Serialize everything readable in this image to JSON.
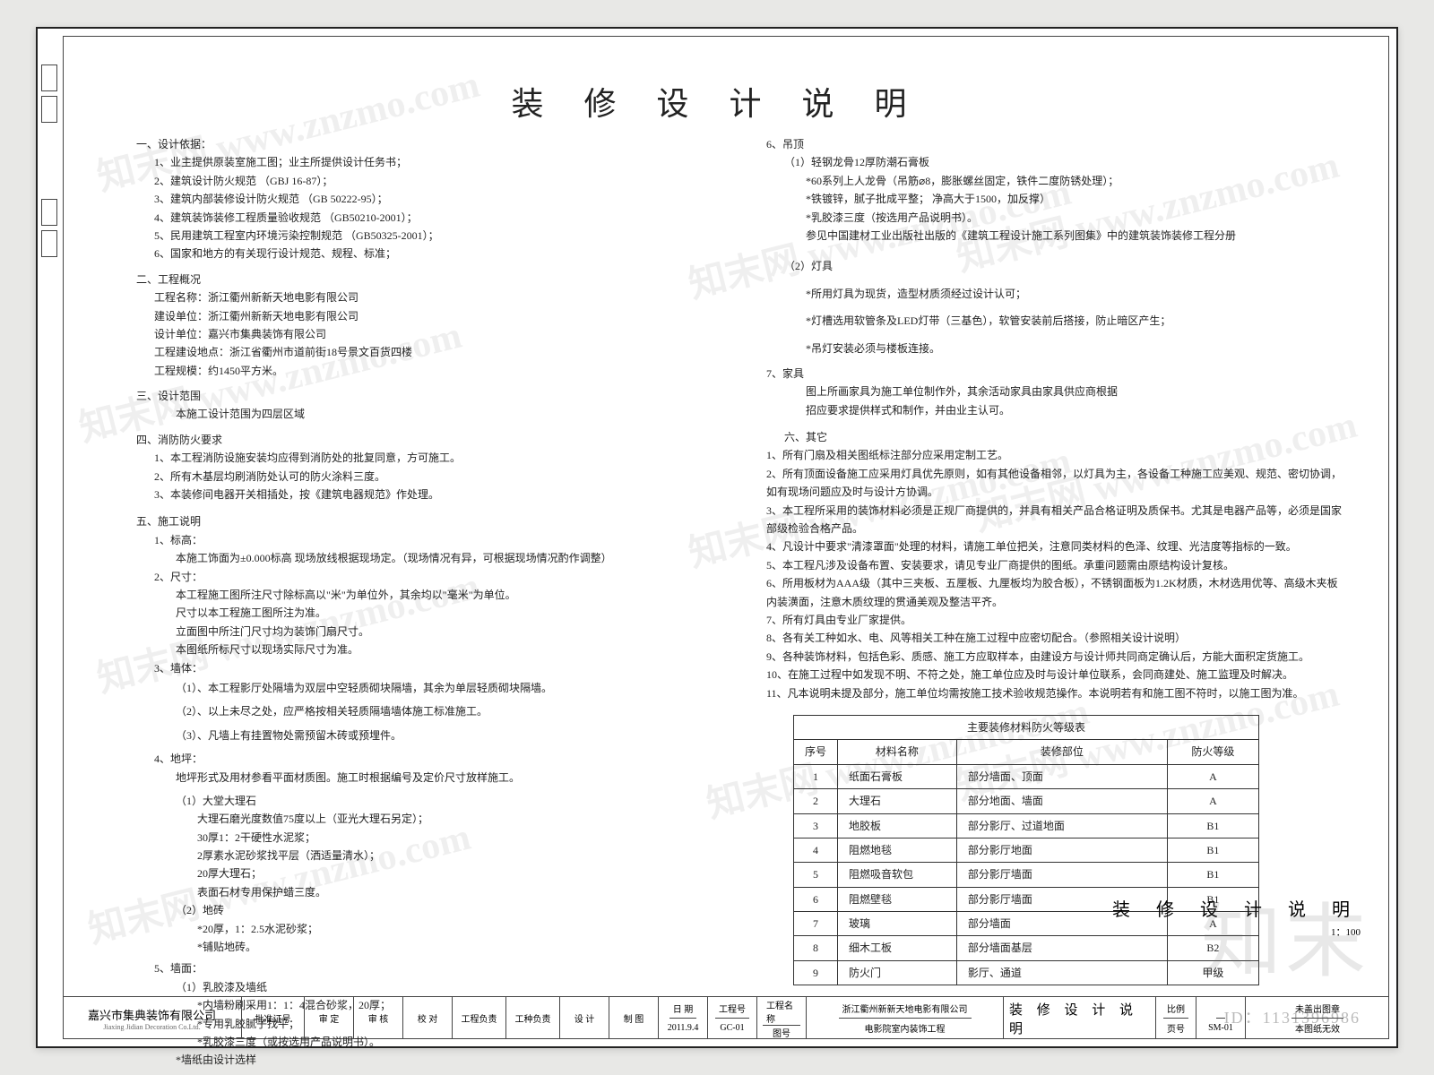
{
  "title": "装 修 设 计 说 明",
  "side_title": "装 修 设 计 说 明",
  "side_scale": "1：100",
  "watermark_text": "知末网 www.znzmo.com",
  "big_watermark": "知末",
  "footer_id": "ID：1131396986",
  "left": {
    "s1_head": "一、设计依据：",
    "s1_1": "1、业主提供原装室施工图；业主所提供设计任务书；",
    "s1_2": "2、建筑设计防火规范 （GBJ 16-87）；",
    "s1_3": "3、建筑内部装修设计防火规范 （GB 50222-95）；",
    "s1_4": "4、建筑装饰装修工程质量验收规范 （GB50210-2001）；",
    "s1_5": "5、民用建筑工程室内环境污染控制规范 （GB50325-2001）；",
    "s1_6": "6、国家和地方的有关现行设计规范、规程、标准；",
    "s2_head": "二、工程概况",
    "s2_1": "工程名称：浙江衢州新新天地电影有限公司",
    "s2_2": "建设单位：浙江衢州新新天地电影有限公司",
    "s2_3": "设计单位：嘉兴市集典装饰有限公司",
    "s2_4": "工程建设地点：浙江省衢州市道前街18号景文百货四楼",
    "s2_5": "工程规模：约1450平方米。",
    "s3_head": "三、设计范围",
    "s3_1": "本施工设计范围为四层区域",
    "s4_head": "四、消防防火要求",
    "s4_1": "1、本工程消防设施安装均应得到消防处的批复同意，方可施工。",
    "s4_2": "2、所有木基层均刷消防处认可的防火涂料三度。",
    "s4_3": "3、本装修间电器开关相插处，按《建筑电器规范》作处理。",
    "s5_head": "五、施工说明",
    "s5_1h": "1、标高：",
    "s5_1": "本施工饰面为±0.000标高 现场放线根据现场定。（现场情况有异，可根据现场情况酌作调整）",
    "s5_2h": "2、尺寸：",
    "s5_2a": "本工程施工图所注尺寸除标高以\"米\"为单位外，其余均以\"毫米\"为单位。",
    "s5_2b": "尺寸以本工程施工图所注为准。",
    "s5_2c": "立面图中所注门尺寸均为装饰门扇尺寸。",
    "s5_2d": "本图纸所标尺寸以现场实际尺寸为准。",
    "s5_3h": "3、墙体：",
    "s5_3a": "（1）、本工程影厅处隔墙为双层中空轻质砌块隔墙，其余为单层轻质砌块隔墙。",
    "s5_3b": "（2）、以上未尽之处，应严格按相关轻质隔墙墙体施工标准施工。",
    "s5_3c": "（3）、凡墙上有挂置物处需预留木砖或预埋件。",
    "s5_4h": "4、地坪：",
    "s5_4": "地坪形式及用材参看平面材质图。施工时根据编号及定价尺寸放样施工。",
    "s5_4_1h": "（1）大堂大理石",
    "s5_4_1a": "大理石磨光度数值75度以上（亚光大理石另定）；",
    "s5_4_1b": "30厚1：2干硬性水泥浆；",
    "s5_4_1c": "2厚素水泥砂浆找平层（洒适量清水）；",
    "s5_4_1d": "20厚大理石；",
    "s5_4_1e": "表面石材专用保护蜡三度。",
    "s5_4_2h": "（2）地砖",
    "s5_4_2a": "*20厚，1：2.5水泥砂浆；",
    "s5_4_2b": "*铺贴地砖。",
    "s5_5h": "5、墙面：",
    "s5_5_1h": "（1）乳胶漆及墙纸",
    "s5_5_1a": "*内墙粉刷采用1：1：4混合砂浆，20厚；",
    "s5_5_1b": "*专用乳胶腻子找平；",
    "s5_5_1c": "*乳胶漆三度（或按选用产品说明书）。",
    "s5_5_1d": "*墙纸由设计选样"
  },
  "right": {
    "s6_head": "6、吊顶",
    "s6_1h": "（1）轻钢龙骨12厚防潮石膏板",
    "s6_1a": "*60系列上人龙骨（吊筋⌀8，膨胀螺丝固定，铁件二度防锈处理）；",
    "s6_1b": "*铁镀锌，腻子批成平整；       净高大于1500，加反撑）",
    "s6_1c": "*乳胶漆三度（按选用产品说明书）。",
    "s6_1d": "参见中国建材工业出版社出版的《建筑工程设计施工系列图集》中的建筑装饰装修工程分册",
    "s6_2h": "（2）灯具",
    "s6_2a": "*所用灯具为现货，造型材质须经过设计认可；",
    "s6_2b": "*灯槽选用软管条及LED灯带（三基色），软管安装前后搭接，防止暗区产生；",
    "s6_2c": "*吊灯安装必须与楼板连接。",
    "s7_head": "7、家具",
    "s7_1": "图上所画家具为施工单位制作外，其余活动家具由家具供应商根据",
    "s7_2": "招应要求提供样式和制作，并由业主认可。",
    "s8_head": "六、其它",
    "s8_1": "1、所有门扇及相关图纸标注部分应采用定制工艺。",
    "s8_2": "2、所有顶面设备施工应采用灯具优先原则，如有其他设备相邻，以灯具为主，各设备工种施工应美观、规范、密切协调，如有现场问题应及时与设计方协调。",
    "s8_3": "3、本工程所采用的装饰材料必须是正规厂商提供的，并具有相关产品合格证明及质保书。尤其是电器产品等，必须是国家部级检验合格产品。",
    "s8_4": "4、凡设计中要求\"清漆罩面\"处理的材料，请施工单位把关，注意同类材料的色泽、纹理、光洁度等指标的一致。",
    "s8_5": "5、本工程凡涉及设备布置、安装要求，请见专业厂商提供的图纸。承重问题需由原结构设计复核。",
    "s8_6": "6、所用板材为AAA级（其中三夹板、五厘板、九厘板均为胶合板），不锈钢面板为1.2K材质，木材选用优等、高级木夹板内装潢面，注意木质纹理的贯通美观及整洁平齐。",
    "s8_7": "7、所有灯具由专业厂家提供。",
    "s8_8": "8、各有关工种如水、电、风等相关工种在施工过程中应密切配合。（参照相关设计说明）",
    "s8_9": "9、各种装饰材料，包括色彩、质感、施工方应取样本，由建设方与设计师共同商定确认后，方能大面积定货施工。",
    "s8_10": "10、在施工过程中如发现不明、不符之处，施工单位应及时与设计单位联系，会同商建处、施工监理及时解决。",
    "s8_11": "11、凡本说明未提及部分，施工单位均需按施工技术验收规范操作。本说明若有和施工图不符时，以施工图为准。"
  },
  "fire_table": {
    "caption": "主要装修材料防火等级表",
    "cols": [
      "序号",
      "材料名称",
      "装修部位",
      "防火等级"
    ],
    "rows": [
      [
        "1",
        "纸面石膏板",
        "部分墙面、顶面",
        "A"
      ],
      [
        "2",
        "大理石",
        "部分地面、墙面",
        "A"
      ],
      [
        "3",
        "地胶板",
        "部分影厅、过道地面",
        "B1"
      ],
      [
        "4",
        "阻燃地毯",
        "部分影厅地面",
        "B1"
      ],
      [
        "5",
        "阻燃吸音软包",
        "部分影厅墙面",
        "B1"
      ],
      [
        "6",
        "阻燃壁毯",
        "部分影厅墙面",
        "B1"
      ],
      [
        "7",
        "玻璃",
        "部分墙面",
        "A"
      ],
      [
        "8",
        "细木工板",
        "部分墙面基层",
        "B2"
      ],
      [
        "9",
        "防火门",
        "影厅、通道",
        "甲级"
      ]
    ]
  },
  "titleblock": {
    "company_cn": "嘉兴市集典装饰有限公司",
    "company_en": "Jiaxing Jidian Decoration Co.Ltd.",
    "lbl_reg": "批准证号",
    "lbl_approve": "审  定",
    "lbl_review": "审  核",
    "lbl_proof": "校  对",
    "lbl_pm": "工程负责",
    "lbl_arch": "工种负责",
    "lbl_design": "设  计",
    "lbl_draw": "制  图",
    "lbl_date": "日  期",
    "lbl_projno": "工程号",
    "lbl_projname": "工程名称",
    "lbl_sheetno": "图号",
    "date": "2011.9.4",
    "projno": "GC-01",
    "proj1": "浙江衢州新新天地电影有限公司",
    "proj2": "电影院室内装饰工程",
    "sheet_title": "装 修 设 计 说 明",
    "sheetno": "SM-01",
    "scale": "比例",
    "pageno_lbl": "页号",
    "note1": "未盖出图章",
    "note2": "本图纸无效"
  }
}
